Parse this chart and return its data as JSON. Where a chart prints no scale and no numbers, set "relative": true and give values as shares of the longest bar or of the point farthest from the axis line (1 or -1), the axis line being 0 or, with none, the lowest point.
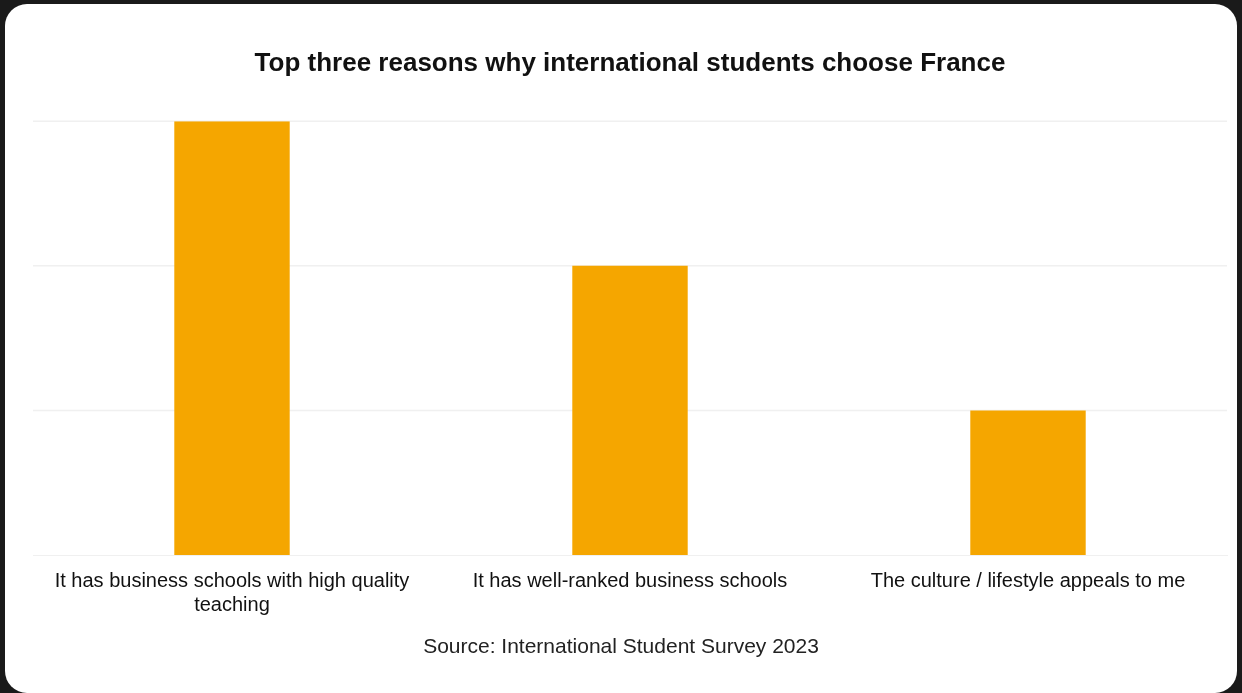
{
  "chart_data": {
    "type": "bar",
    "title": "Top three reasons why international students choose France",
    "categories": [
      "It has business schools with high quality teaching",
      "It has well-ranked business schools",
      "The culture / lifestyle appeals to me"
    ],
    "values": [
      1,
      0.667,
      0.333
    ],
    "color": "#f5a600",
    "relative": true,
    "ref_lines": [
      {
        "axis": "y",
        "value": 0.333,
        "color": "#f0f0f0"
      },
      {
        "axis": "y",
        "value": 0.667,
        "color": "#f0f0f0"
      },
      {
        "axis": "y",
        "value": 1,
        "color": "#f0f0f0"
      }
    ],
    "legend": false,
    "annotations": [
      "Source: International Student Survey 2023"
    ]
  }
}
